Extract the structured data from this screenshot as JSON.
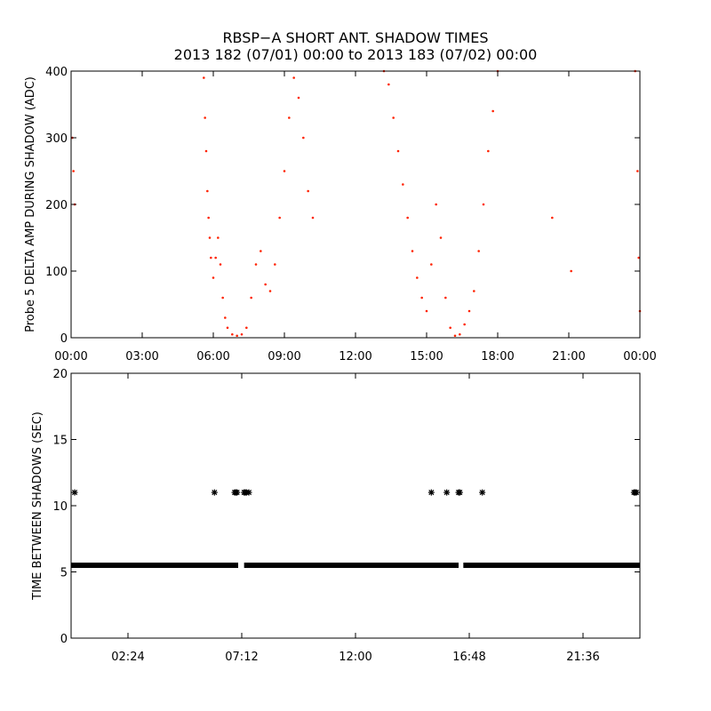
{
  "title": {
    "line1": "RBSP−A SHORT ANT. SHADOW TIMES",
    "line2": "2013 182 (07/01) 00:00 to 2013 183 (07/02) 00:00"
  },
  "colors": {
    "top_series": "#ff2200",
    "bottom_series": "#000000",
    "axes": "#000000"
  },
  "chart_data": [
    {
      "type": "scatter",
      "ylabel": "Probe 5 DELTA AMP DURING SHADOW (ADC)",
      "xlabel": "",
      "xlim_hours": [
        0,
        24
      ],
      "ylim": [
        0,
        400
      ],
      "x_ticks": [
        {
          "h": 0,
          "label": "00:00"
        },
        {
          "h": 3,
          "label": "03:00"
        },
        {
          "h": 6,
          "label": "06:00"
        },
        {
          "h": 9,
          "label": "09:00"
        },
        {
          "h": 12,
          "label": "12:00"
        },
        {
          "h": 15,
          "label": "15:00"
        },
        {
          "h": 18,
          "label": "18:00"
        },
        {
          "h": 21,
          "label": "21:00"
        },
        {
          "h": 24,
          "label": "00:00"
        }
      ],
      "y_ticks": [
        0,
        100,
        200,
        300,
        400
      ],
      "marker": "dot",
      "series": [
        {
          "x_hours": [
            0.05,
            0.1,
            0.15,
            5.6,
            5.65,
            5.7,
            5.75,
            5.8,
            5.85,
            5.9,
            6.0,
            6.1,
            6.2,
            6.3,
            6.4,
            6.5,
            6.6,
            6.8,
            7.0,
            7.2,
            7.4,
            7.6,
            7.8,
            8.0,
            8.2,
            8.4,
            8.6,
            8.8,
            9.0,
            9.2,
            9.4,
            9.6,
            9.8,
            10.0,
            10.2,
            13.2,
            13.4,
            13.6,
            13.8,
            14.0,
            14.2,
            14.4,
            14.6,
            14.8,
            15.0,
            15.2,
            15.4,
            15.6,
            15.8,
            16.0,
            16.2,
            16.4,
            16.6,
            16.8,
            17.0,
            17.2,
            17.4,
            17.6,
            17.8,
            18.0,
            20.3,
            21.1,
            23.8,
            23.9,
            23.95,
            24.0
          ],
          "y": [
            300,
            250,
            200,
            390,
            330,
            280,
            220,
            180,
            150,
            120,
            90,
            120,
            150,
            110,
            60,
            30,
            15,
            5,
            3,
            5,
            15,
            60,
            110,
            130,
            80,
            70,
            110,
            180,
            250,
            330,
            390,
            360,
            300,
            220,
            180,
            400,
            380,
            330,
            280,
            230,
            180,
            130,
            90,
            60,
            40,
            110,
            200,
            150,
            60,
            15,
            3,
            5,
            20,
            40,
            70,
            130,
            200,
            280,
            340,
            400,
            180,
            100,
            400,
            250,
            120,
            40
          ]
        }
      ]
    },
    {
      "type": "scatter",
      "ylabel": "TIME BETWEEN SHADOWS (SEC)",
      "xlabel": "",
      "xlim_hours": [
        0,
        24
      ],
      "ylim": [
        0,
        20
      ],
      "x_ticks": [
        {
          "h": 2.4,
          "label": "02:24"
        },
        {
          "h": 7.2,
          "label": "07:12"
        },
        {
          "h": 12.0,
          "label": "12:00"
        },
        {
          "h": 16.8,
          "label": "16:48"
        },
        {
          "h": 21.6,
          "label": "21:36"
        }
      ],
      "y_ticks": [
        0,
        5,
        10,
        15,
        20
      ],
      "marker": "asterisk",
      "baseline_value": 5.5,
      "baseline_gaps_hours": [
        [
          7.05,
          7.3
        ],
        [
          16.35,
          16.55
        ]
      ],
      "series": [
        {
          "x_hours": [
            0.15,
            6.05,
            6.9,
            6.95,
            7.0,
            7.3,
            7.35,
            7.4,
            7.5,
            15.2,
            15.85,
            16.35,
            16.4,
            17.35,
            23.75,
            23.8,
            23.85
          ],
          "y": [
            11,
            11,
            11,
            11,
            11,
            11,
            11,
            11,
            11,
            11,
            11,
            11,
            11,
            11,
            11,
            11,
            11
          ]
        }
      ]
    }
  ]
}
